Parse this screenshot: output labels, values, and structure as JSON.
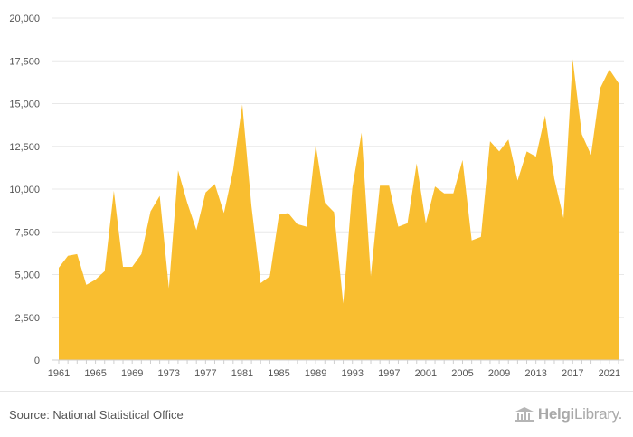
{
  "chart_data": {
    "type": "area",
    "color": "#f9be30",
    "ylim": [
      0,
      20000
    ],
    "y_ticks": [
      "0",
      "2,500",
      "5,000",
      "7,500",
      "10,000",
      "12,500",
      "15,000",
      "17,500",
      "20,000"
    ],
    "y_tick_values": [
      0,
      2500,
      5000,
      7500,
      10000,
      12500,
      15000,
      17500,
      20000
    ],
    "x_ticks": [
      "1961",
      "1965",
      "1969",
      "1973",
      "1977",
      "1981",
      "1985",
      "1989",
      "1993",
      "1997",
      "2001",
      "2005",
      "2009",
      "2013",
      "2017",
      "2021"
    ],
    "x": [
      1961,
      1962,
      1963,
      1964,
      1965,
      1966,
      1967,
      1968,
      1969,
      1970,
      1971,
      1972,
      1973,
      1974,
      1975,
      1976,
      1977,
      1978,
      1979,
      1980,
      1981,
      1982,
      1983,
      1984,
      1985,
      1986,
      1987,
      1988,
      1989,
      1990,
      1991,
      1992,
      1993,
      1994,
      1995,
      1996,
      1997,
      1998,
      1999,
      2000,
      2001,
      2002,
      2003,
      2004,
      2005,
      2006,
      2007,
      2008,
      2009,
      2010,
      2011,
      2012,
      2013,
      2014,
      2015,
      2016,
      2017,
      2018,
      2019,
      2020,
      2021,
      2022
    ],
    "values": [
      5400,
      6100,
      6200,
      4400,
      4700,
      5200,
      9900,
      5450,
      5450,
      6200,
      8700,
      9600,
      4200,
      11100,
      9200,
      7600,
      9800,
      10300,
      8600,
      11100,
      14950,
      9000,
      4500,
      4900,
      8500,
      8600,
      7950,
      7800,
      12600,
      9200,
      8650,
      3300,
      10100,
      13300,
      4900,
      10200,
      10200,
      7800,
      8000,
      11500,
      8000,
      10150,
      9750,
      9750,
      11700,
      7000,
      7200,
      12800,
      12200,
      12900,
      10500,
      12200,
      11900,
      14300,
      10600,
      8300,
      17600,
      13200,
      12000,
      15900,
      17000,
      16200
    ]
  },
  "footer": {
    "source": "Source: National Statistical Office",
    "brand_prefix": "Helgi",
    "brand_suffix": "Library."
  }
}
